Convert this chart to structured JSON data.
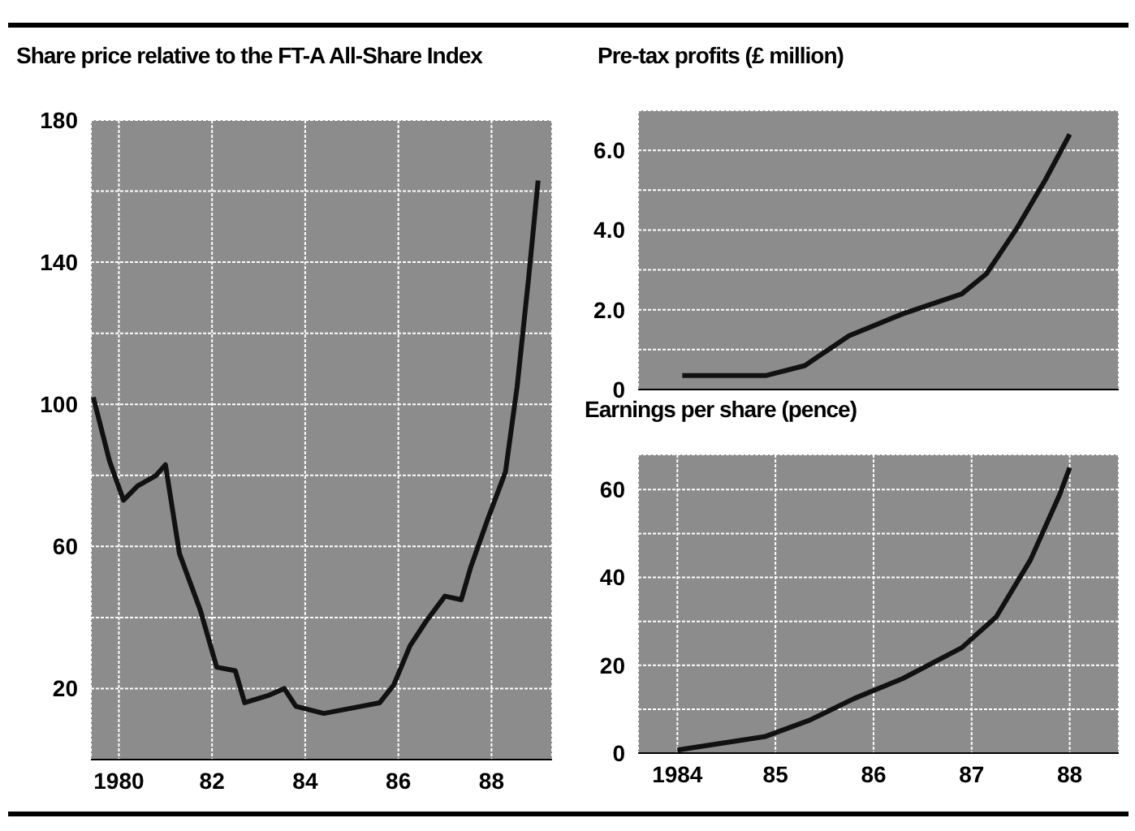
{
  "chart_data": [
    {
      "type": "line",
      "title": "Share price relative to the FT-A All-Share Index",
      "grid": true,
      "x": [
        1979.45,
        1979.8,
        1980.1,
        1980.4,
        1980.8,
        1981.0,
        1981.3,
        1981.75,
        1982.1,
        1982.5,
        1982.7,
        1983.2,
        1983.55,
        1983.8,
        1984.4,
        1985.2,
        1985.6,
        1985.9,
        1986.25,
        1986.6,
        1987.0,
        1987.35,
        1987.55,
        1987.9,
        1988.3,
        1988.55,
        1988.8,
        1989.0
      ],
      "series": [
        {
          "color": "#111111",
          "values": [
            102,
            84,
            73,
            77,
            80,
            83,
            58,
            42,
            26,
            25,
            16,
            18,
            20,
            15,
            13,
            15,
            16,
            21,
            32,
            39,
            46,
            45,
            54,
            67,
            81,
            105,
            136,
            163
          ]
        }
      ],
      "xlim": [
        1979.4,
        1989.3
      ],
      "xticks": [
        1980,
        {
          "value": 1982,
          "label": "82"
        },
        {
          "value": 1984,
          "label": "84"
        },
        {
          "value": 1986,
          "label": "86"
        },
        {
          "value": 1988,
          "label": "88"
        }
      ],
      "ylim": [
        0,
        180
      ],
      "yticks": [
        20,
        {
          "value": 40,
          "label": null
        },
        60,
        {
          "value": 80,
          "label": null
        },
        100,
        {
          "value": 120,
          "label": null
        },
        140,
        {
          "value": 160,
          "label": null
        },
        180
      ]
    },
    {
      "type": "line",
      "title": "Pre-tax profits (£ million)",
      "grid": true,
      "tick_labels": "y",
      "x": [
        1984.05,
        1984.9,
        1985.3,
        1985.75,
        1986.3,
        1986.9,
        1987.15,
        1987.45,
        1987.75,
        1988.0
      ],
      "series": [
        {
          "color": "#111111",
          "values": [
            0.35,
            0.35,
            0.6,
            1.35,
            1.9,
            2.4,
            2.9,
            4.0,
            5.25,
            6.4
          ]
        }
      ],
      "xlim": [
        1983.6,
        1988.5
      ],
      "xticks": [
        1984,
        1985,
        1986,
        1987,
        1988
      ],
      "ylim": [
        0,
        7
      ],
      "yticks": [
        0,
        {
          "value": 1,
          "label": null
        },
        {
          "value": 2,
          "label": "2.0"
        },
        {
          "value": 3,
          "label": null
        },
        {
          "value": 4,
          "label": "4.0"
        },
        {
          "value": 5,
          "label": null
        },
        {
          "value": 6,
          "label": "6.0"
        }
      ]
    },
    {
      "type": "line",
      "title": "Earnings per share (pence)",
      "grid": true,
      "x": [
        1984.0,
        1984.9,
        1985.35,
        1985.8,
        1986.3,
        1986.9,
        1987.25,
        1987.6,
        1987.9,
        1988.0
      ],
      "series": [
        {
          "color": "#111111",
          "values": [
            0.7,
            3.8,
            7.5,
            12.4,
            17,
            24,
            31,
            44,
            59,
            65
          ]
        }
      ],
      "xlim": [
        1983.6,
        1988.5
      ],
      "xticks": [
        1984,
        {
          "value": 1985,
          "label": "85"
        },
        {
          "value": 1986,
          "label": "86"
        },
        {
          "value": 1987,
          "label": "87"
        },
        {
          "value": 1988,
          "label": "88"
        }
      ],
      "ylim": [
        0,
        68
      ],
      "yticks": [
        0,
        {
          "value": 10,
          "label": null
        },
        20,
        {
          "value": 30,
          "label": null
        },
        40,
        {
          "value": 50,
          "label": null
        },
        60
      ]
    }
  ]
}
